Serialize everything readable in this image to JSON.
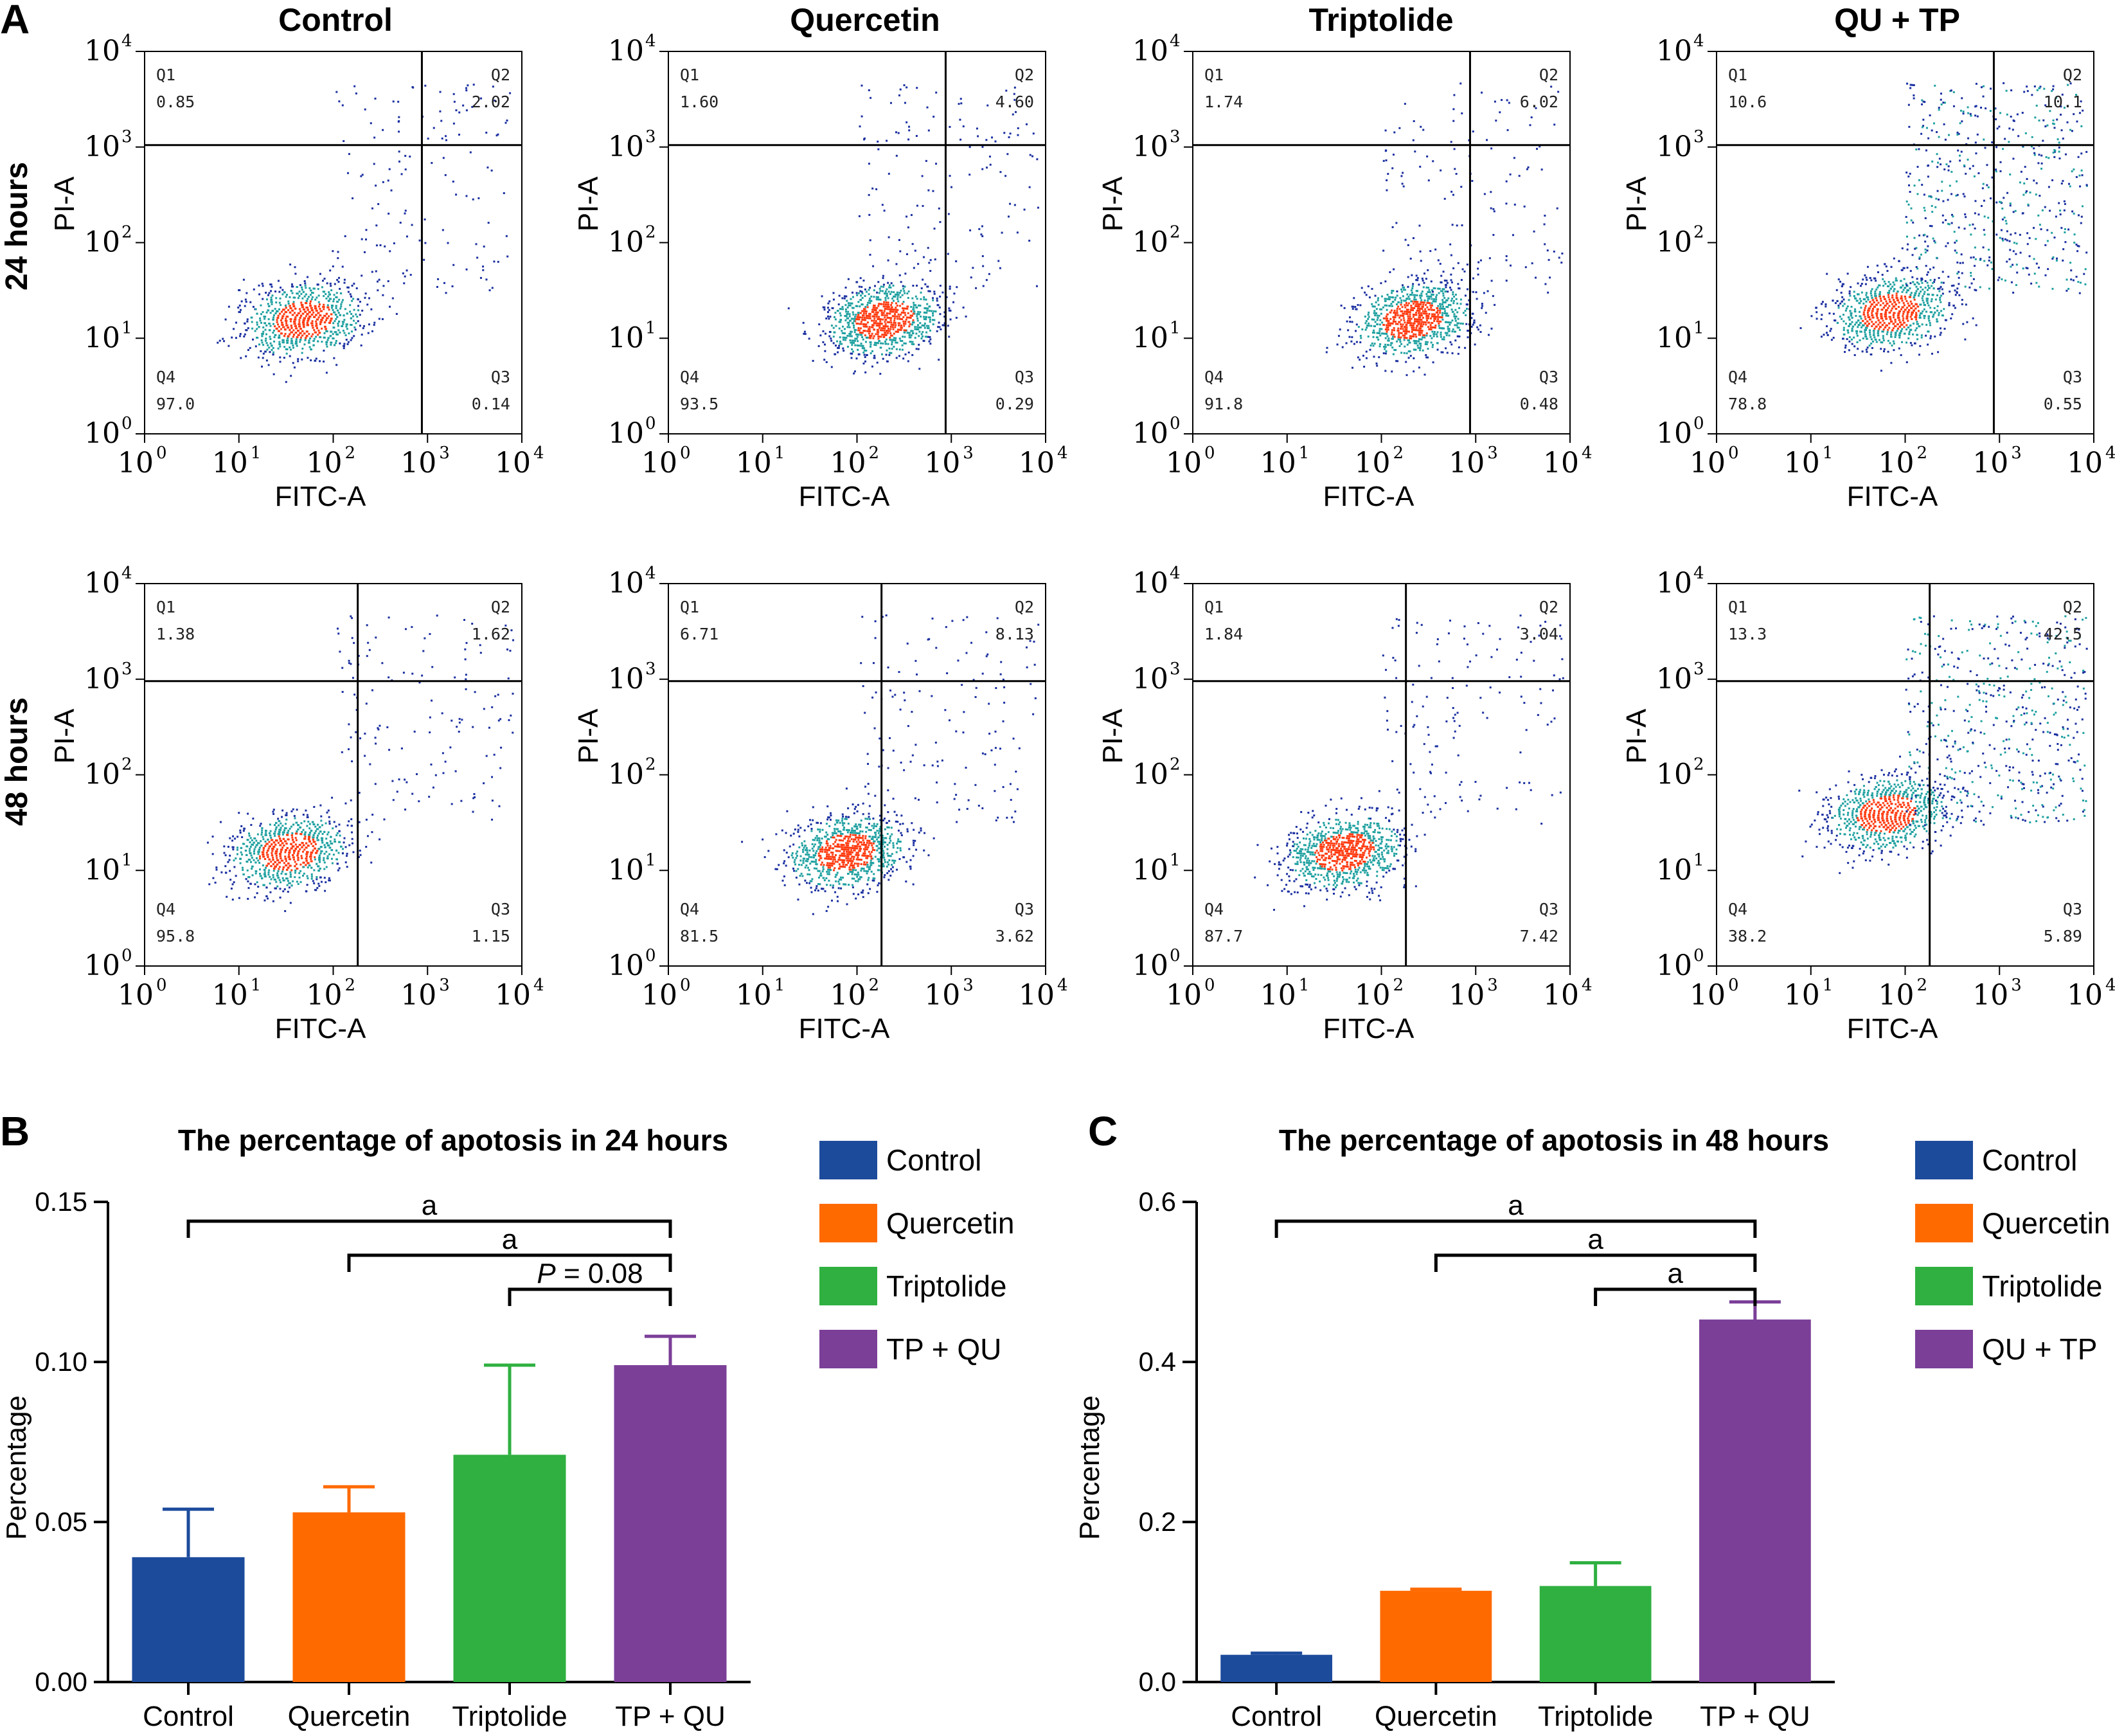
{
  "panel_letters": {
    "a": "A",
    "b": "B",
    "c": "C"
  },
  "colors": {
    "control": "#1c4b9c",
    "quercetin": "#ff6a00",
    "triptolide": "#2fb040",
    "combo": "#7b3f98",
    "flow_low": "#1a2fa0",
    "flow_mid": "#1fa0a0",
    "flow_hot": "#ff3a10"
  },
  "flow": {
    "column_titles": [
      "Control",
      "Quercetin",
      "Triptolide",
      "QU + TP"
    ],
    "row_labels": [
      "24 hours",
      "48 hours"
    ],
    "x_axis_label": "FITC-A",
    "y_axis_label": "PI-A",
    "tick_base": "10",
    "tick_exponents": [
      "0",
      "1",
      "2",
      "3",
      "4"
    ],
    "quadrant_names": [
      "Q1",
      "Q2",
      "Q3",
      "Q4"
    ],
    "panels": [
      {
        "row": 0,
        "col": 0,
        "q1": "0.85",
        "q2": "2.02",
        "q3": "0.14",
        "q4": "97.0"
      },
      {
        "row": 0,
        "col": 1,
        "q1": "1.60",
        "q2": "4.60",
        "q3": "0.29",
        "q4": "93.5"
      },
      {
        "row": 0,
        "col": 2,
        "q1": "1.74",
        "q2": "6.02",
        "q3": "0.48",
        "q4": "91.8"
      },
      {
        "row": 0,
        "col": 3,
        "q1": "10.6",
        "q2": "10.1",
        "q3": "0.55",
        "q4": "78.8"
      },
      {
        "row": 1,
        "col": 0,
        "q1": "1.38",
        "q2": "1.62",
        "q3": "1.15",
        "q4": "95.8"
      },
      {
        "row": 1,
        "col": 1,
        "q1": "6.71",
        "q2": "8.13",
        "q3": "3.62",
        "q4": "81.5"
      },
      {
        "row": 1,
        "col": 2,
        "q1": "1.84",
        "q2": "3.04",
        "q3": "7.42",
        "q4": "87.7"
      },
      {
        "row": 1,
        "col": 3,
        "q1": "13.3",
        "q2": "42.5",
        "q3": "5.89",
        "q4": "38.2"
      }
    ]
  },
  "chart_data": [
    {
      "type": "bar",
      "title": "The percentage of apotosis in 24 hours",
      "ylabel": "Percentage",
      "xlabel": "",
      "categories": [
        "Control",
        "Quercetin",
        "Triptolide",
        "TP + QU"
      ],
      "values": [
        0.039,
        0.053,
        0.071,
        0.099
      ],
      "errors": [
        0.015,
        0.008,
        0.028,
        0.009
      ],
      "ylim": [
        0,
        0.15
      ],
      "yticks": [
        0.0,
        0.05,
        0.1,
        0.15
      ],
      "ytick_labels": [
        "0.00",
        "0.05",
        "0.10",
        "0.15"
      ],
      "legend": [
        "Control",
        "Quercetin",
        "Triptolide",
        "TP + QU"
      ],
      "significance": [
        {
          "from": 0,
          "to": 3,
          "label": "a",
          "is_p": false
        },
        {
          "from": 1,
          "to": 3,
          "label": "a",
          "is_p": false
        },
        {
          "from": 2,
          "to": 3,
          "label": "P",
          "p_value": " = 0.08",
          "is_p": true
        }
      ]
    },
    {
      "type": "bar",
      "title": "The percentage of apotosis in 48 hours",
      "ylabel": "Percentage",
      "xlabel": "",
      "categories": [
        "Control",
        "Quercetin",
        "Triptolide",
        "TP + QU"
      ],
      "values": [
        0.034,
        0.114,
        0.12,
        0.453
      ],
      "errors": [
        0.002,
        0.002,
        0.029,
        0.022
      ],
      "ylim": [
        0,
        0.6
      ],
      "yticks": [
        0.0,
        0.2,
        0.4,
        0.6
      ],
      "ytick_labels": [
        "0.0",
        "0.2",
        "0.4",
        "0.6"
      ],
      "legend": [
        "Control",
        "Quercetin",
        "Triptolide",
        "QU + TP"
      ],
      "significance": [
        {
          "from": 0,
          "to": 3,
          "label": "a",
          "is_p": false
        },
        {
          "from": 1,
          "to": 3,
          "label": "a",
          "is_p": false
        },
        {
          "from": 2,
          "to": 3,
          "label": "a",
          "is_p": false
        }
      ]
    }
  ]
}
